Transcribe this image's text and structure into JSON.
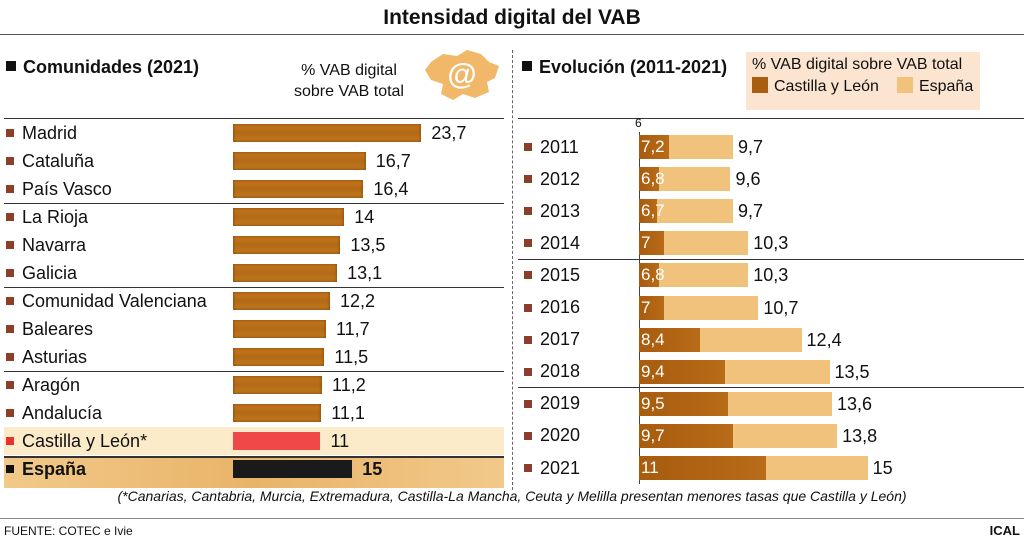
{
  "title": "Intensidad digital del VAB",
  "chart_data": [
    {
      "type": "bar",
      "orientation": "horizontal",
      "title": "Comunidades (2021)",
      "unit_label": "% VAB digital sobre VAB total",
      "categories": [
        "Madrid",
        "Cataluña",
        "País Vasco",
        "La Rioja",
        "Navarra",
        "Galicia",
        "Comunidad Valenciana",
        "Baleares",
        "Asturias",
        "Aragón",
        "Andalucía",
        "Castilla y León*",
        "España"
      ],
      "labels": [
        "23,7",
        "16,7",
        "16,4",
        "14",
        "13,5",
        "13,1",
        "12,2",
        "11,7",
        "11,5",
        "11,2",
        "11,1",
        "11",
        "15"
      ],
      "values": [
        23.7,
        16.7,
        16.4,
        14,
        13.5,
        13.1,
        12.2,
        11.7,
        11.5,
        11.2,
        11.1,
        11,
        15
      ],
      "colors": {
        "default": "#b8701a",
        "highlight": "#f04848",
        "total": "#1a1a1a"
      }
    },
    {
      "type": "bar",
      "orientation": "horizontal",
      "title": "Evolución (2011-2021)",
      "unit_label": "% VAB digital sobre VAB total",
      "axis_start": 6,
      "axis_start_label": "6",
      "categories": [
        "2011",
        "2012",
        "2013",
        "2014",
        "2015",
        "2016",
        "2017",
        "2018",
        "2019",
        "2020",
        "2021"
      ],
      "series": [
        {
          "name": "Castilla y León",
          "color": "#a85d0f",
          "values": [
            7.2,
            6.8,
            6.7,
            7,
            6.8,
            7,
            8.4,
            9.4,
            9.5,
            9.7,
            11
          ],
          "labels": [
            "7,2",
            "6,8",
            "6,7",
            "7",
            "6,8",
            "7",
            "8,4",
            "9,4",
            "9,5",
            "9,7",
            "11"
          ]
        },
        {
          "name": "España",
          "color": "#f0c27c",
          "values": [
            9.7,
            9.6,
            9.7,
            10.3,
            10.3,
            10.7,
            12.4,
            13.5,
            13.6,
            13.8,
            15
          ],
          "labels": [
            "9,7",
            "9,6",
            "9,7",
            "10,3",
            "10,3",
            "10,7",
            "12,4",
            "13,5",
            "13,6",
            "13,8",
            "15"
          ]
        }
      ]
    }
  ],
  "footnote": "(*Canarias, Cantabria, Murcia, Extremadura, Castilla-La Mancha, Ceuta y Melilla presentan menores tasas que Castilla y León)",
  "source": "FUENTE: COTEC e Ivie",
  "credit": "ICAL",
  "logo_text": "@"
}
